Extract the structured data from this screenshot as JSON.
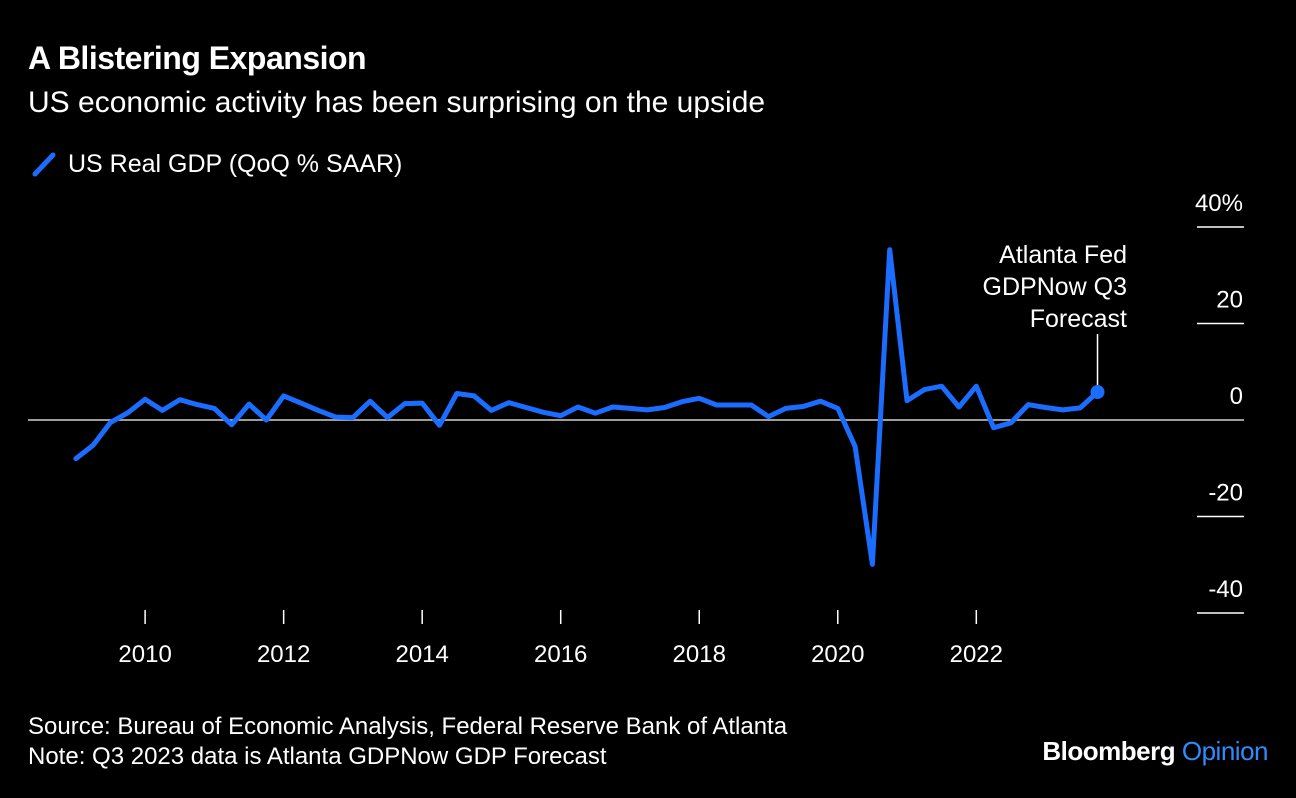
{
  "header": {
    "title": "A Blistering Expansion",
    "subtitle": "US economic activity has been surprising on the upside"
  },
  "legend": {
    "label": "US Real GDP (QoQ % SAAR)"
  },
  "footer": {
    "source": "Source: Bureau of Economic Analysis, Federal Reserve Bank of Atlanta",
    "note": "Note: Q3 2023 data is Atlanta GDPNow GDP Forecast"
  },
  "brand": {
    "name": "Bloomberg",
    "section": "Opinion"
  },
  "colors": {
    "background": "#000000",
    "series": "#1a6dff",
    "text": "#ffffff",
    "brand_accent": "#2e8cff"
  },
  "chart_data": {
    "type": "line",
    "title": "A Blistering Expansion",
    "subtitle": "US economic activity has been surprising on the upside",
    "xlabel": "",
    "ylabel": "",
    "ylim": [
      -40,
      40
    ],
    "xlim": [
      2008.8,
      2024.45
    ],
    "yticks": [
      -40,
      -20,
      0,
      20,
      40
    ],
    "ytick_labels": [
      "-40",
      "-20",
      "0",
      "20",
      "40%"
    ],
    "xticks": [
      2010,
      2012,
      2014,
      2016,
      2018,
      2020,
      2022
    ],
    "xtick_labels": [
      "2010",
      "2012",
      "2014",
      "2016",
      "2018",
      "2020",
      "2022"
    ],
    "grid": false,
    "legend_position": "top-left",
    "series": [
      {
        "name": "US Real GDP (QoQ % SAAR)",
        "x": [
          2009.0,
          2009.25,
          2009.5,
          2009.75,
          2010.0,
          2010.25,
          2010.5,
          2010.75,
          2011.0,
          2011.25,
          2011.5,
          2011.75,
          2012.0,
          2012.25,
          2012.5,
          2012.75,
          2013.0,
          2013.25,
          2013.5,
          2013.75,
          2014.0,
          2014.25,
          2014.5,
          2014.75,
          2015.0,
          2015.25,
          2015.5,
          2015.75,
          2016.0,
          2016.25,
          2016.5,
          2016.75,
          2017.0,
          2017.25,
          2017.5,
          2017.75,
          2018.0,
          2018.25,
          2018.5,
          2018.75,
          2019.0,
          2019.25,
          2019.5,
          2019.75,
          2020.0,
          2020.25,
          2020.5,
          2020.75,
          2021.0,
          2021.25,
          2021.5,
          2021.75,
          2022.0,
          2022.25,
          2022.5,
          2022.75,
          2023.0,
          2023.25,
          2023.5,
          2023.75
        ],
        "y": [
          -8.0,
          -5.2,
          -0.5,
          1.5,
          4.3,
          2.0,
          4.2,
          3.2,
          2.4,
          -1.0,
          3.3,
          0.0,
          5.0,
          3.5,
          2.0,
          0.6,
          0.5,
          3.9,
          0.5,
          3.4,
          3.5,
          -1.1,
          5.5,
          5.0,
          2.0,
          3.6,
          2.6,
          1.6,
          0.9,
          2.7,
          1.4,
          2.7,
          2.4,
          2.1,
          2.6,
          3.8,
          4.5,
          3.1,
          3.1,
          3.1,
          0.7,
          2.4,
          2.8,
          3.9,
          2.4,
          -5.5,
          -29.9,
          35.3,
          4.0,
          6.3,
          7.0,
          2.7,
          7.0,
          -1.6,
          -0.6,
          3.2,
          2.6,
          2.1,
          2.5,
          5.8
        ]
      }
    ],
    "annotations": [
      {
        "text_lines": [
          "Atlanta Fed",
          "GDPNow Q3",
          "Forecast"
        ],
        "x": 2023.75,
        "y": 5.8
      }
    ]
  }
}
